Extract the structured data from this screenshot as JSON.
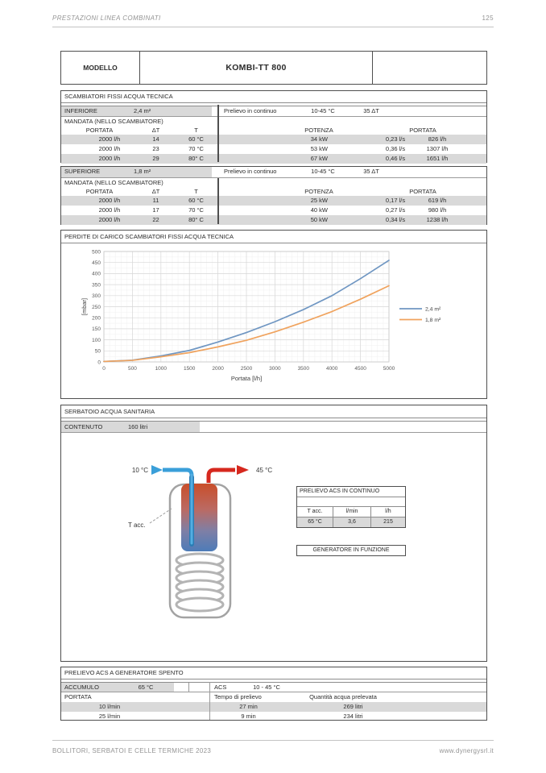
{
  "page": {
    "header_left": "PRESTAZIONI LINEA COMBINATI",
    "page_number": "125",
    "footer_left": "BOLLITORI, SERBATOI E CELLE TERMICHE 2023",
    "footer_right": "www.dynergysrl.it"
  },
  "model": {
    "label": "MODELLO",
    "value": "KOMBI-TT 800"
  },
  "scambiatori": {
    "title": "SCAMBIATORI FISSI ACQUA TECNICA",
    "sections": [
      {
        "name": "INFERIORE",
        "area": "2,4 m²",
        "prelievo_label": "Prelievo in continuo",
        "range": "10-45 °C",
        "dt": "35 ΔT",
        "mandata_label": "MANDATA (NELLO SCAMBIATORE)",
        "col_portata": "PORTATA",
        "col_dt": "ΔT",
        "col_t": "T",
        "col_potenza": "POTENZA",
        "col_portata2": "PORTATA",
        "rows": [
          {
            "portata": "2000 l/h",
            "dt": "14",
            "t": "60 °C",
            "kw": "34 kW",
            "ls": "0,23 l/s",
            "lh": "826 l/h"
          },
          {
            "portata": "2000 l/h",
            "dt": "23",
            "t": "70 °C",
            "kw": "53 kW",
            "ls": "0,36 l/s",
            "lh": "1307 l/h"
          },
          {
            "portata": "2000 l/h",
            "dt": "29",
            "t": "80° C",
            "kw": "67 kW",
            "ls": "0,46 l/s",
            "lh": "1651 l/h"
          }
        ]
      },
      {
        "name": "SUPERIORE",
        "area": "1,8 m²",
        "prelievo_label": "Prelievo in continuo",
        "range": "10-45 °C",
        "dt": "35 ΔT",
        "mandata_label": "MANDATA (NELLO SCAMBIATORE)",
        "col_portata": "PORTATA",
        "col_dt": "ΔT",
        "col_t": "T",
        "col_potenza": "POTENZA",
        "col_portata2": "PORTATA",
        "rows": [
          {
            "portata": "2000 l/h",
            "dt": "11",
            "t": "60 °C",
            "kw": "25 kW",
            "ls": "0,17 l/s",
            "lh": "619 l/h"
          },
          {
            "portata": "2000 l/h",
            "dt": "17",
            "t": "70 °C",
            "kw": "40 kW",
            "ls": "0,27 l/s",
            "lh": "980 l/h"
          },
          {
            "portata": "2000 l/h",
            "dt": "22",
            "t": "80° C",
            "kw": "50 kW",
            "ls": "0,34 l/s",
            "lh": "1238 l/h"
          }
        ]
      }
    ]
  },
  "chart_data": {
    "type": "line",
    "title": "PERDITE DI CARICO SCAMBIATORI FISSI ACQUA TECNICA",
    "xlabel": "Portata [l/h]",
    "ylabel": "[mbar]",
    "xlim": [
      0,
      5000
    ],
    "ylim": [
      0,
      500
    ],
    "x_ticks": [
      0,
      500,
      1000,
      1500,
      2000,
      2500,
      3000,
      3500,
      4000,
      4500,
      5000
    ],
    "y_ticks": [
      0,
      50,
      100,
      150,
      200,
      250,
      300,
      350,
      400,
      450,
      500
    ],
    "grid": true,
    "legend_position": "right",
    "x": [
      0,
      500,
      1000,
      1500,
      2000,
      2500,
      3000,
      3500,
      4000,
      4500,
      5000
    ],
    "series": [
      {
        "name": "2,4 m²",
        "color": "#6f96c2",
        "values": [
          2,
          8,
          27,
          52,
          90,
          133,
          182,
          237,
          300,
          377,
          460
        ]
      },
      {
        "name": "1,8 m²",
        "color": "#f0a35e",
        "values": [
          2,
          7,
          23,
          42,
          68,
          98,
          136,
          180,
          228,
          284,
          345
        ]
      }
    ]
  },
  "serbatoio": {
    "title": "SERBATOIO ACQUA SANITARIA",
    "contenuto_label": "CONTENUTO",
    "contenuto_value": "160 litri",
    "diagram": {
      "cold_label": "10 °C",
      "hot_label": "45 °C",
      "tacc_label": "T acc.",
      "cold_color": "#3a9fd9",
      "hot_color": "#d6281e"
    },
    "prelievo_table": {
      "title": "PRELIEVO ACS IN CONTINUO",
      "headers": [
        "T acc.",
        "l/min",
        "l/h"
      ],
      "row": [
        "65 °C",
        "3,6",
        "215"
      ]
    },
    "generatore_label": "GENERATORE IN FUNZIONE"
  },
  "prelievo_spento": {
    "title": "PRELIEVO ACS A GENERATORE SPENTO",
    "accumulo_label": "ACCUMULO",
    "accumulo_value": "65 °C",
    "acs_label": "ACS",
    "acs_value": "10 - 45 °C",
    "col_portata": "PORTATA",
    "col_tempo": "Tempo di prelievo",
    "col_quantita": "Quantità acqua prelevata",
    "rows": [
      {
        "portata": "10 l/min",
        "tempo": "27 min",
        "quantita": "269 litri"
      },
      {
        "portata": "25 l/min",
        "tempo": "9 min",
        "quantita": "234 litri"
      }
    ]
  }
}
